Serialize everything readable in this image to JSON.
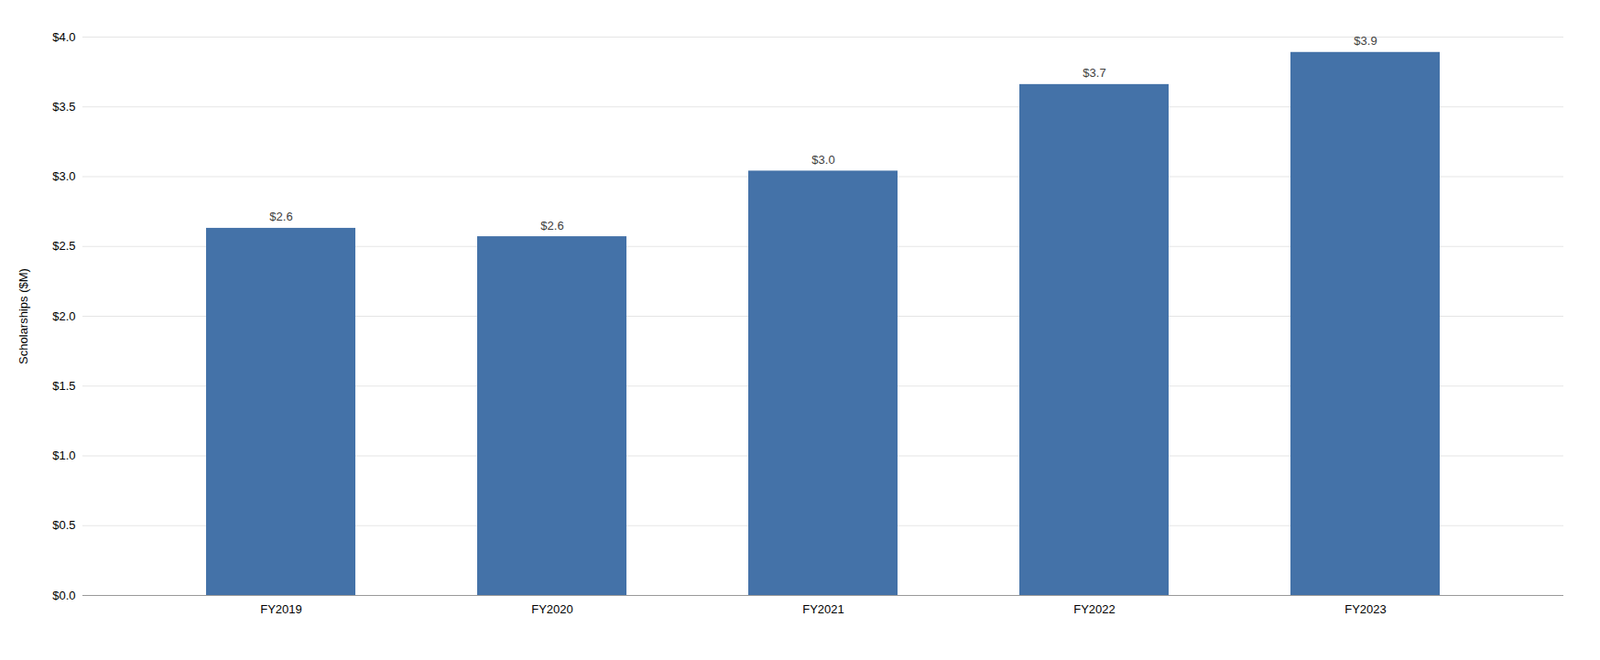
{
  "chart_data": {
    "type": "bar",
    "categories": [
      "FY2019",
      "FY2020",
      "FY2021",
      "FY2022",
      "FY2023"
    ],
    "values": [
      2.63,
      2.57,
      3.04,
      3.66,
      3.89
    ],
    "value_labels": [
      "$2.6",
      "$2.6",
      "$3.0",
      "$3.7",
      "$3.9"
    ],
    "data_labels": true,
    "color": "#4472a8",
    "ylabel": "Scholarships ($M)",
    "ylim": [
      0,
      4.0
    ],
    "yticks": [
      {
        "value": 0.0,
        "label": "$0.0"
      },
      {
        "value": 0.5,
        "label": "$0.5"
      },
      {
        "value": 1.0,
        "label": "$1.0"
      },
      {
        "value": 1.5,
        "label": "$1.5"
      },
      {
        "value": 2.0,
        "label": "$2.0"
      },
      {
        "value": 2.5,
        "label": "$2.5"
      },
      {
        "value": 3.0,
        "label": "$3.0"
      },
      {
        "value": 3.5,
        "label": "$3.5"
      },
      {
        "value": 4.0,
        "label": "$4.0"
      }
    ],
    "grid": true
  }
}
